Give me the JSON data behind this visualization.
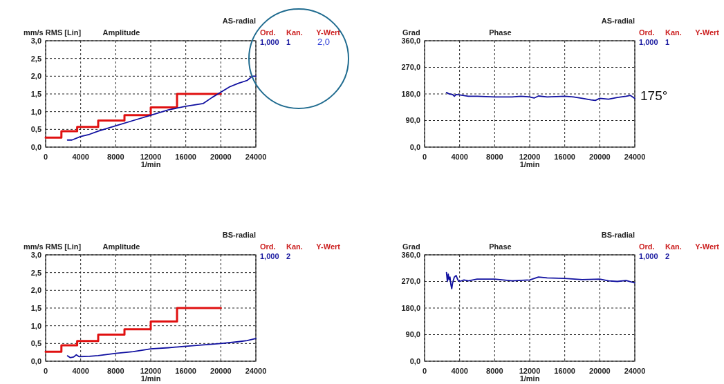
{
  "chart_data": [
    {
      "type": "line",
      "title": "Amplitude",
      "subtitle": "AS-radial",
      "ylabel": "mm/s RMS [Lin]",
      "xlabel": "1/min",
      "xlim": [
        0,
        24000
      ],
      "xticks": [
        0,
        4000,
        8000,
        12000,
        16000,
        20000,
        24000
      ],
      "ylim": [
        0,
        3
      ],
      "yticks": [
        {
          "value": 0,
          "label": "0,0"
        },
        {
          "value": 0.5,
          "label": "0,5"
        },
        {
          "value": 1,
          "label": "1,0"
        },
        {
          "value": 1.5,
          "label": "1,5"
        },
        {
          "value": 2,
          "label": "2,0"
        },
        {
          "value": 2.5,
          "label": "2,5"
        },
        {
          "value": 3,
          "label": "3,0"
        }
      ],
      "grid": true,
      "annotations": [
        "Ord.",
        "Kan.",
        "Y-Wert",
        "1,000",
        "1",
        "2,0"
      ],
      "series": [
        {
          "type": "step",
          "color": "#e01010",
          "x": [
            0,
            1800,
            3600,
            6000,
            9000,
            12000,
            15000,
            20000
          ],
          "values": [
            0.27,
            0.45,
            0.57,
            0.75,
            0.9,
            1.12,
            1.5,
            1.5
          ]
        },
        {
          "type": "line",
          "color": "#1010a0",
          "x": [
            2500,
            3000,
            4000,
            5000,
            6000,
            8000,
            10000,
            12000,
            14000,
            16000,
            18000,
            19000,
            20000,
            21000,
            22000,
            23000,
            23600,
            24000
          ],
          "values": [
            0.2,
            0.2,
            0.3,
            0.36,
            0.45,
            0.6,
            0.75,
            0.9,
            1.05,
            1.15,
            1.23,
            1.4,
            1.55,
            1.7,
            1.8,
            1.88,
            2.0,
            2.0
          ]
        }
      ]
    },
    {
      "type": "line",
      "title": "Phase",
      "subtitle": "AS-radial",
      "ylabel": "Grad",
      "xlabel": "1/min",
      "xlim": [
        0,
        24000
      ],
      "xticks": [
        0,
        4000,
        8000,
        12000,
        16000,
        20000,
        24000
      ],
      "ylim": [
        0,
        360
      ],
      "yticks": [
        {
          "value": 0,
          "label": "0,0"
        },
        {
          "value": 90,
          "label": "90,0"
        },
        {
          "value": 180,
          "label": "180,0"
        },
        {
          "value": 270,
          "label": "270,0"
        },
        {
          "value": 360,
          "label": "360,0"
        }
      ],
      "grid": true,
      "annotations": [
        "Ord.",
        "Kan.",
        "Y-Wert",
        "1,000",
        "1",
        {
          "text": "175°",
          "x": 24000,
          "y": 175
        }
      ],
      "series": [
        {
          "type": "line",
          "color": "#1010a0",
          "x": [
            2500,
            2800,
            3200,
            3400,
            3600,
            4000,
            5000,
            6000,
            8000,
            10000,
            11000,
            12000,
            12500,
            13000,
            14000,
            16000,
            17000,
            18000,
            19000,
            19500,
            20000,
            21000,
            22000,
            23000,
            23500,
            24000
          ],
          "values": [
            185,
            180,
            178,
            172,
            178,
            177,
            172,
            172,
            170,
            170,
            172,
            170,
            166,
            173,
            170,
            172,
            170,
            165,
            160,
            158,
            165,
            162,
            168,
            172,
            175,
            165
          ]
        }
      ]
    },
    {
      "type": "line",
      "title": "Amplitude",
      "subtitle": "BS-radial",
      "ylabel": "mm/s RMS [Lin]",
      "xlabel": "1/min",
      "xlim": [
        0,
        24000
      ],
      "xticks": [
        0,
        4000,
        8000,
        12000,
        16000,
        20000,
        24000
      ],
      "ylim": [
        0,
        3
      ],
      "yticks": [
        {
          "value": 0,
          "label": "0,0"
        },
        {
          "value": 0.5,
          "label": "0,5"
        },
        {
          "value": 1,
          "label": "1,0"
        },
        {
          "value": 1.5,
          "label": "1,5"
        },
        {
          "value": 2,
          "label": "2,0"
        },
        {
          "value": 2.5,
          "label": "2,5"
        },
        {
          "value": 3,
          "label": "3,0"
        }
      ],
      "grid": true,
      "annotations": [
        "Ord.",
        "Kan.",
        "Y-Wert",
        "1,000",
        "2"
      ],
      "series": [
        {
          "type": "step",
          "color": "#e01010",
          "x": [
            0,
            1800,
            3600,
            6000,
            9000,
            12000,
            15000,
            20000
          ],
          "values": [
            0.27,
            0.45,
            0.57,
            0.75,
            0.9,
            1.12,
            1.5,
            1.5
          ]
        },
        {
          "type": "line",
          "color": "#1010a0",
          "x": [
            2500,
            2800,
            3200,
            3500,
            3800,
            5000,
            6000,
            8000,
            10000,
            12000,
            14000,
            16000,
            18000,
            20000,
            22000,
            23000,
            24000
          ],
          "values": [
            0.15,
            0.1,
            0.12,
            0.18,
            0.13,
            0.14,
            0.16,
            0.22,
            0.27,
            0.35,
            0.38,
            0.42,
            0.46,
            0.5,
            0.55,
            0.58,
            0.64
          ]
        }
      ]
    },
    {
      "type": "line",
      "title": "Phase",
      "subtitle": "BS-radial",
      "ylabel": "Grad",
      "xlabel": "1/min",
      "xlim": [
        0,
        24000
      ],
      "xticks": [
        0,
        4000,
        8000,
        12000,
        16000,
        20000,
        24000
      ],
      "ylim": [
        0,
        360
      ],
      "yticks": [
        {
          "value": 0,
          "label": "0,0"
        },
        {
          "value": 90,
          "label": "90,0"
        },
        {
          "value": 180,
          "label": "180,0"
        },
        {
          "value": 270,
          "label": "270,0"
        },
        {
          "value": 360,
          "label": "360,0"
        }
      ],
      "grid": true,
      "annotations": [
        "Ord.",
        "Kan.",
        "Y-Wert",
        "1,000",
        "2"
      ],
      "series": [
        {
          "type": "line",
          "color": "#1010a0",
          "x": [
            2500,
            2600,
            2700,
            2800,
            2900,
            3000,
            3100,
            3200,
            3400,
            3600,
            3800,
            4000,
            4500,
            5000,
            6000,
            8000,
            10000,
            12000,
            13000,
            14000,
            16000,
            18000,
            20000,
            21000,
            22000,
            23000,
            24000
          ],
          "values": [
            300,
            270,
            295,
            275,
            285,
            260,
            245,
            265,
            285,
            290,
            275,
            270,
            275,
            272,
            278,
            278,
            272,
            275,
            285,
            282,
            280,
            276,
            278,
            272,
            270,
            273,
            265
          ]
        }
      ]
    }
  ]
}
